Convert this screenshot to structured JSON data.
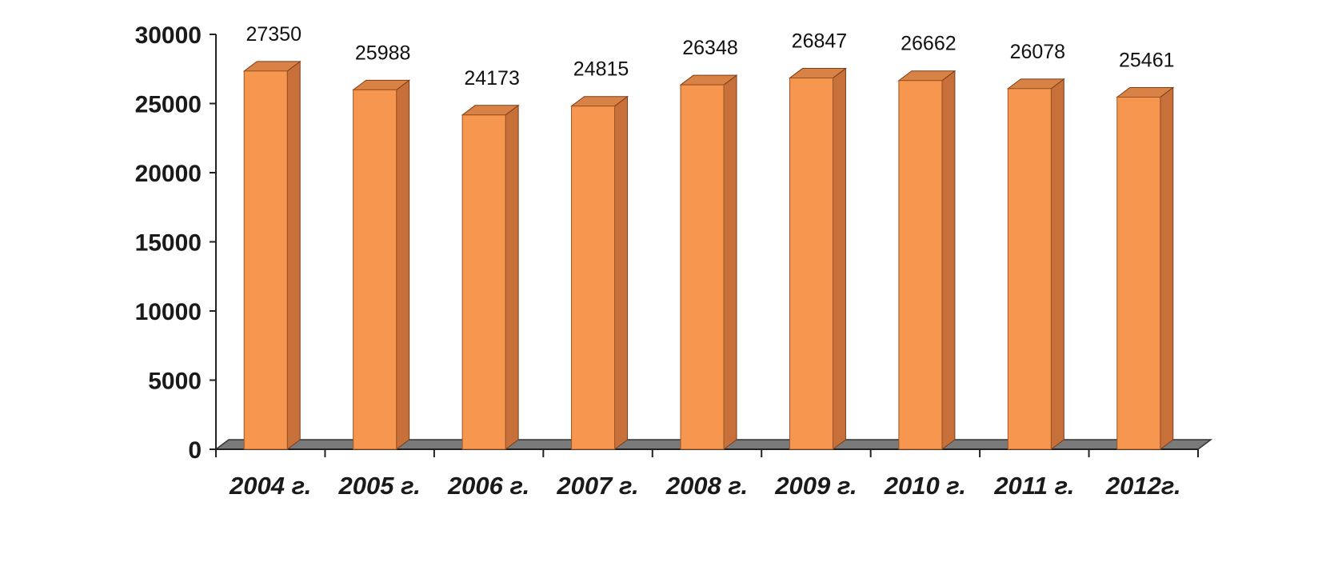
{
  "chart_data": {
    "type": "bar",
    "categories": [
      "2004 г.",
      "2005 г.",
      "2006 г.",
      "2007 г.",
      "2008 г.",
      "2009 г.",
      "2010 г.",
      "2011 г.",
      "2012г."
    ],
    "values": [
      27350,
      25988,
      24173,
      24815,
      26348,
      26847,
      26662,
      26078,
      25461
    ],
    "data_labels": [
      "27350",
      "25988",
      "24173",
      "24815",
      "26348",
      "26847",
      "26662",
      "26078",
      "25461"
    ],
    "ylim": [
      0,
      30000
    ],
    "yticks": [
      0,
      5000,
      10000,
      15000,
      20000,
      25000,
      30000
    ],
    "ytick_labels": [
      "0",
      "5000",
      "10000",
      "15000",
      "20000",
      "25000",
      "30000"
    ],
    "grid": false,
    "legend": "none",
    "colors": {
      "bar_front": "#F7964F",
      "bar_side": "#C8703A",
      "bar_top": "#D98246",
      "floor": "#7a7a7a"
    }
  }
}
